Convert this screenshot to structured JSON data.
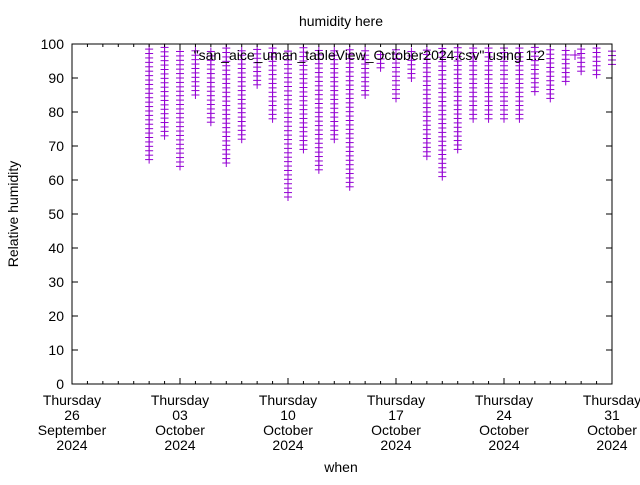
{
  "chart_data": {
    "type": "scatter",
    "title": "humidity here",
    "xlabel": "when",
    "ylabel": "Relative humidity",
    "ylim": [
      0,
      100
    ],
    "yticks": [
      "0",
      "10",
      "20",
      "30",
      "40",
      "50",
      "60",
      "70",
      "80",
      "90",
      "100"
    ],
    "xlim": [
      "2024-09-26",
      "2024-10-31"
    ],
    "xticks": [
      {
        "line1": "Thursday",
        "line2": "26",
        "line3": "September",
        "line4": "2024"
      },
      {
        "line1": "Thursday",
        "line2": "03",
        "line3": "October",
        "line4": "2024"
      },
      {
        "line1": "Thursday",
        "line2": "10",
        "line3": "October",
        "line4": "2024"
      },
      {
        "line1": "Thursday",
        "line2": "17",
        "line3": "October",
        "line4": "2024"
      },
      {
        "line1": "Thursday",
        "line2": "24",
        "line3": "October",
        "line4": "2024"
      },
      {
        "line1": "Thursday",
        "line2": "31",
        "line3": "October",
        "line4": "2024"
      }
    ],
    "grid": false,
    "legend": {
      "label": "\"san_aice_uman_tableView_October2024.csv\" using 1:2",
      "placement": "top-right"
    },
    "series_color": "#9400d3",
    "series": [
      {
        "name": "\"san_aice_uman_tableView_October2024.csv\" using 1:2",
        "daily_range": [
          {
            "day": 1,
            "min": 66,
            "max": 99
          },
          {
            "day": 2,
            "min": 73,
            "max": 99
          },
          {
            "day": 3,
            "min": 64,
            "max": 98
          },
          {
            "day": 4,
            "min": 85,
            "max": 99
          },
          {
            "day": 5,
            "min": 77,
            "max": 99
          },
          {
            "day": 6,
            "min": 65,
            "max": 99
          },
          {
            "day": 7,
            "min": 72,
            "max": 99
          },
          {
            "day": 8,
            "min": 88,
            "max": 99
          },
          {
            "day": 9,
            "min": 78,
            "max": 99
          },
          {
            "day": 10,
            "min": 55,
            "max": 99
          },
          {
            "day": 11,
            "min": 69,
            "max": 99
          },
          {
            "day": 12,
            "min": 63,
            "max": 99
          },
          {
            "day": 13,
            "min": 72,
            "max": 99
          },
          {
            "day": 14,
            "min": 58,
            "max": 99
          },
          {
            "day": 15,
            "min": 85,
            "max": 99
          },
          {
            "day": 16,
            "min": 93,
            "max": 97
          },
          {
            "day": 17,
            "min": 84,
            "max": 99
          },
          {
            "day": 18,
            "min": 90,
            "max": 99
          },
          {
            "day": 19,
            "min": 67,
            "max": 99
          },
          {
            "day": 20,
            "min": 61,
            "max": 99
          },
          {
            "day": 21,
            "min": 69,
            "max": 99
          },
          {
            "day": 22,
            "min": 78,
            "max": 99
          },
          {
            "day": 23,
            "min": 78,
            "max": 99
          },
          {
            "day": 24,
            "min": 78,
            "max": 99
          },
          {
            "day": 25,
            "min": 78,
            "max": 99
          },
          {
            "day": 26,
            "min": 86,
            "max": 99
          },
          {
            "day": 27,
            "min": 84,
            "max": 99
          },
          {
            "day": 28,
            "min": 89,
            "max": 99
          },
          {
            "day": 29,
            "min": 92,
            "max": 99
          },
          {
            "day": 30,
            "min": 91,
            "max": 99
          },
          {
            "day": 31,
            "min": 94,
            "max": 99
          }
        ]
      }
    ]
  }
}
